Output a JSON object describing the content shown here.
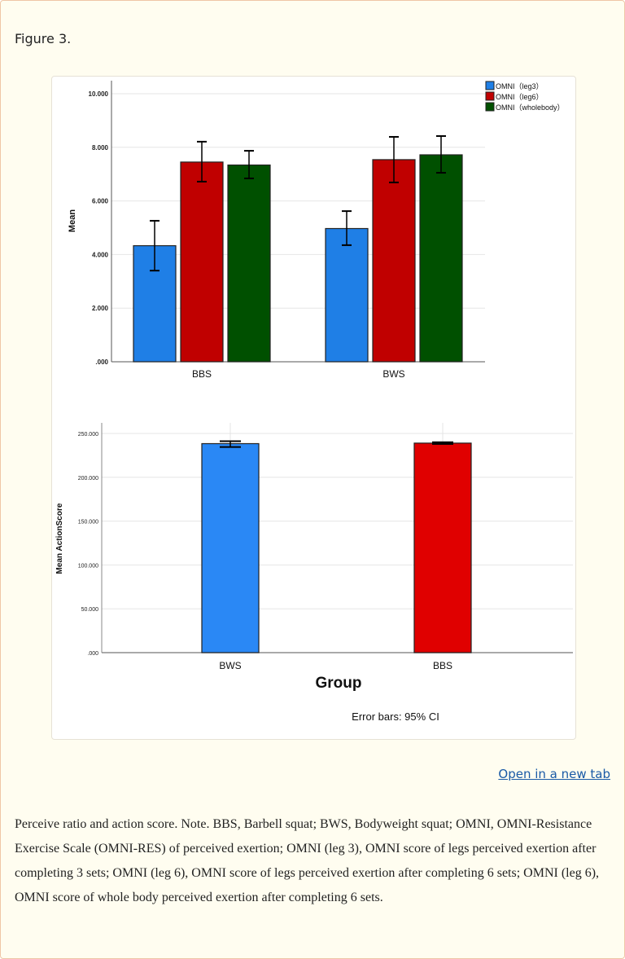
{
  "figure_label": "Figure 3.",
  "open_link": "Open in a new tab",
  "caption": "Perceive ratio and action score. Note. BBS, Barbell squat; BWS, Bodyweight squat; OMNI, OMNI-Resistance Exercise Scale (OMNI-RES) of perceived exertion; OMNI (leg 3), OMNI score of legs perceived exertion after completing 3 sets; OMNI (leg 6), OMNI score of legs perceived exertion after completing 6 sets; OMNI (leg 6), OMNI score of whole body perceived exertion after completing 6 sets.",
  "chart_data": [
    {
      "type": "bar",
      "title": "",
      "xlabel": "",
      "ylabel": "Mean",
      "ylim": [
        0,
        10
      ],
      "yticks": [
        ".000",
        "2.000",
        "4.000",
        "6.000",
        "8.000",
        "10.000"
      ],
      "grid": true,
      "legend": "top-right",
      "categories": [
        "BBS",
        "BWS"
      ],
      "series": [
        {
          "name": "OMNI（leg3）",
          "color": "#1f7fe6",
          "values": [
            4.33,
            4.97
          ],
          "ci_low": [
            3.4,
            4.35
          ],
          "ci_high": [
            5.26,
            5.62
          ]
        },
        {
          "name": "OMNI（leg6）",
          "color": "#c00000",
          "values": [
            7.45,
            7.54
          ],
          "ci_low": [
            6.72,
            6.69
          ],
          "ci_high": [
            8.21,
            8.39
          ]
        },
        {
          "name": "OMNI（wholebody）",
          "color": "#005000",
          "values": [
            7.34,
            7.72
          ],
          "ci_low": [
            6.84,
            7.05
          ],
          "ci_high": [
            7.87,
            8.42
          ]
        }
      ]
    },
    {
      "type": "bar",
      "title": "",
      "xlabel": "Group",
      "ylabel": "Mean ActionScore",
      "ylim": [
        0,
        250
      ],
      "yticks": [
        ".000",
        "50.000",
        "100.000",
        "150.000",
        "200.000",
        "250.000"
      ],
      "grid": true,
      "categories": [
        "BWS",
        "BBS"
      ],
      "colors": [
        "#2a88f5",
        "#e00000"
      ],
      "values": [
        238.4,
        239.0
      ],
      "ci_low": [
        234.6,
        238.0
      ],
      "ci_high": [
        241.2,
        240.0
      ],
      "note": "Error bars: 95% CI"
    }
  ]
}
